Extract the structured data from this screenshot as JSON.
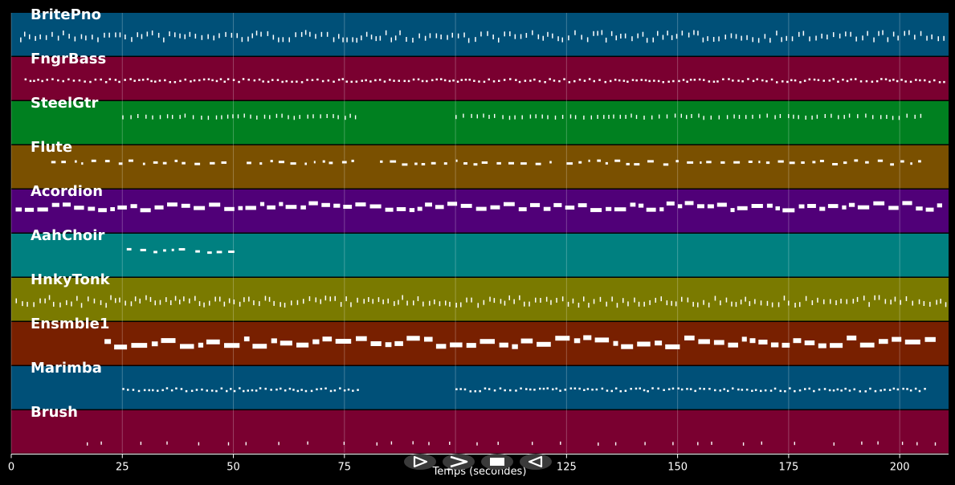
{
  "window": {
    "background": "#000000"
  },
  "timeline": {
    "x_min": 0,
    "x_max": 211,
    "axis_label": "Temps (secondes)",
    "ticks": [
      0,
      25,
      50,
      75,
      100,
      125,
      150,
      175,
      200
    ],
    "grid": true
  },
  "tracks": [
    {
      "name": "BritePno",
      "color": "#005078",
      "style": "dense_short",
      "pattern": "high"
    },
    {
      "name": "FngrBass",
      "color": "#7a0030",
      "style": "dots",
      "pattern": "bass"
    },
    {
      "name": "SteelGtr",
      "color": "#008020",
      "style": "ticks",
      "pattern": "guitar"
    },
    {
      "name": "Flute",
      "color": "#7a5000",
      "style": "dashes",
      "pattern": "melody"
    },
    {
      "name": "Acordion",
      "color": "#500078",
      "style": "blocks",
      "pattern": "full"
    },
    {
      "name": "AahChoir",
      "color": "#008080",
      "style": "dashes",
      "pattern": "choir"
    },
    {
      "name": "HnkyTonk",
      "color": "#7a7a00",
      "style": "dense_short",
      "pattern": "full"
    },
    {
      "name": "Ensmble1",
      "color": "#782000",
      "style": "big_blocks",
      "pattern": "ensemble"
    },
    {
      "name": "Marimba",
      "color": "#005078",
      "style": "dots",
      "pattern": "marimba"
    },
    {
      "name": "Brush",
      "color": "#7a0030",
      "style": "sparse",
      "pattern": "brush"
    }
  ],
  "controls": [
    {
      "name": "play-button",
      "icon": "play-outline-icon",
      "glyph": "▷"
    },
    {
      "name": "forward-button",
      "icon": "fast-forward-icon",
      "glyph": "≫"
    },
    {
      "name": "stop-button",
      "icon": "stop-icon",
      "glyph": "■"
    },
    {
      "name": "rewind-button",
      "icon": "rewind-icon",
      "glyph": "◁"
    }
  ]
}
